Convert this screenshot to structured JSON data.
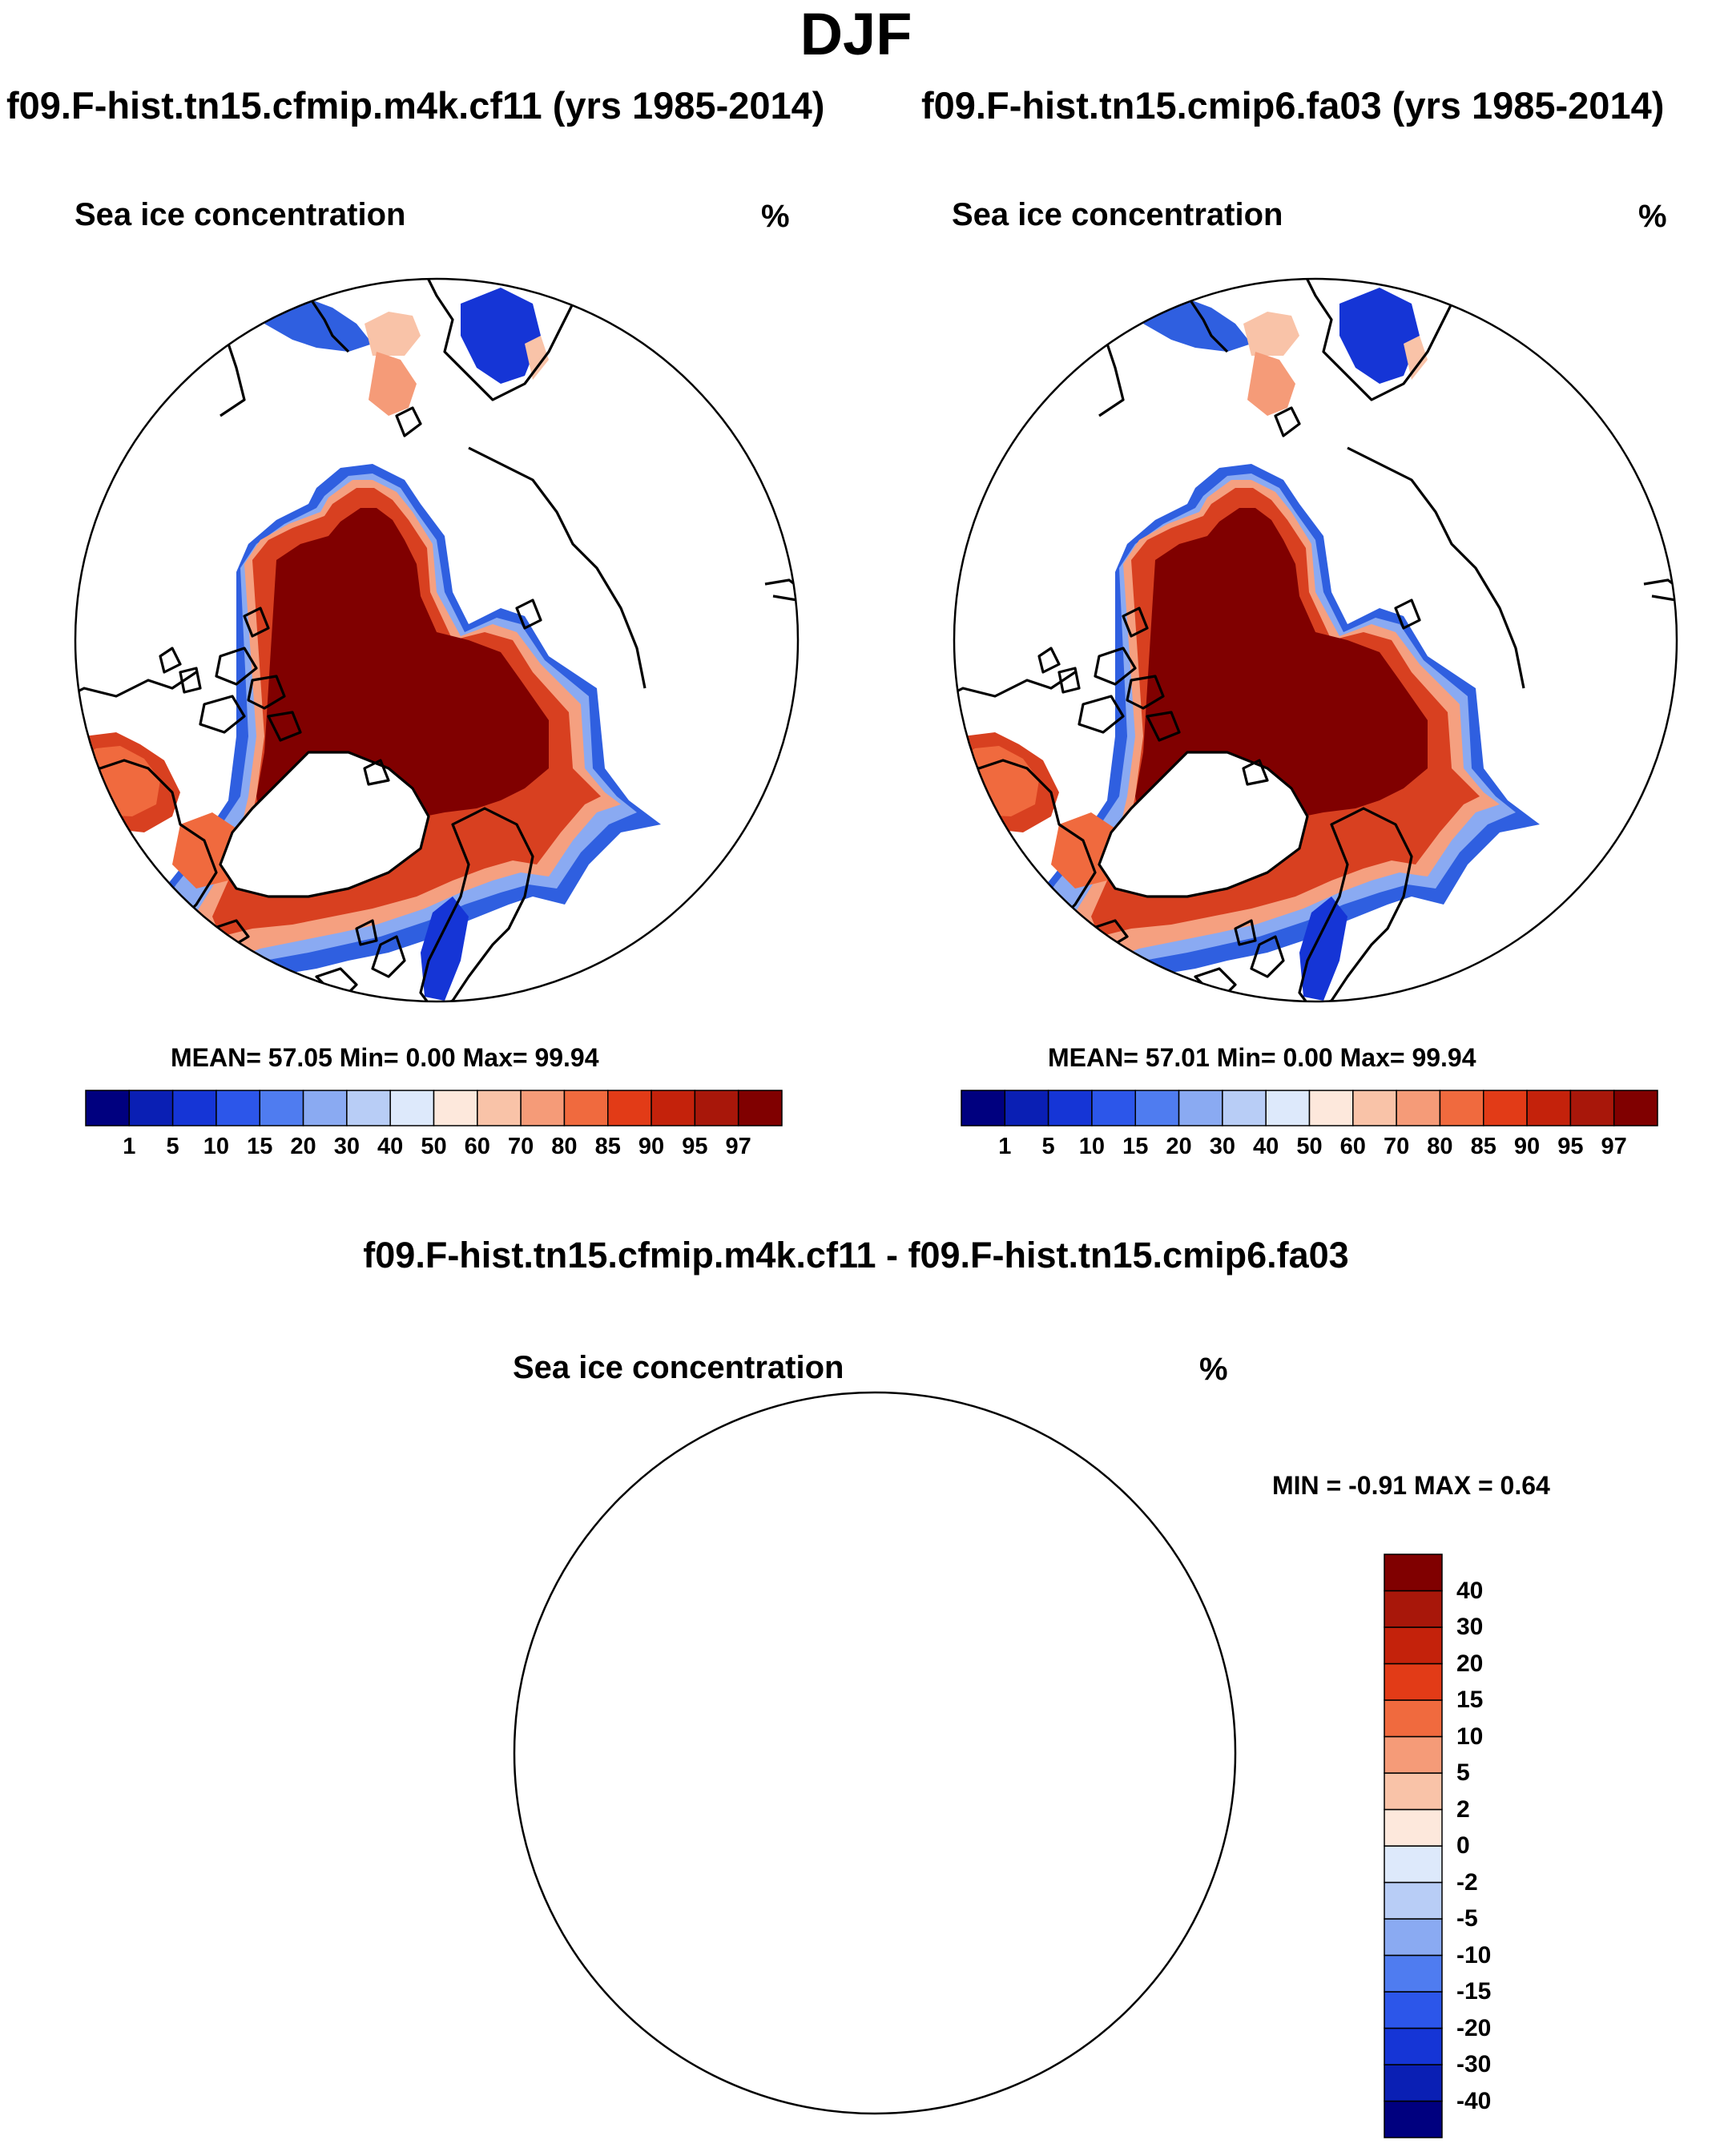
{
  "season_title": "DJF",
  "panels": [
    {
      "case_title": "f09.F-hist.tn15.cfmip.m4k.cf11 (yrs 1985-2014)",
      "field_label": "Sea ice concentration",
      "units": "%",
      "stats": "MEAN=  57.05  Min=    0.00  Max=  99.94"
    },
    {
      "case_title": "f09.F-hist.tn15.cmip6.fa03 (yrs 1985-2014)",
      "field_label": "Sea ice concentration",
      "units": "%",
      "stats": "MEAN=  57.01  Min=    0.00  Max=  99.94"
    }
  ],
  "diff_panel": {
    "title": "f09.F-hist.tn15.cfmip.m4k.cf11 - f09.F-hist.tn15.cmip6.fa03",
    "field_label": "Sea ice concentration",
    "units": "%",
    "stats": "MIN =  -0.91 MAX =   0.64"
  },
  "colorbars": {
    "abs_levels": [
      "1",
      "5",
      "10",
      "15",
      "20",
      "30",
      "40",
      "50",
      "60",
      "70",
      "80",
      "85",
      "90",
      "95",
      "97"
    ],
    "abs_colors": [
      "#00007f",
      "#0a1fb4",
      "#1535d6",
      "#2c56ea",
      "#4f7cf0",
      "#8aaaf2",
      "#b8cdf6",
      "#dde9fb",
      "#fde8dc",
      "#f9c3a8",
      "#f59b78",
      "#f06a3e",
      "#e23b17",
      "#c4220b",
      "#a8170a",
      "#800000"
    ],
    "diff_levels": [
      "-40",
      "-30",
      "-20",
      "-15",
      "-10",
      "-5",
      "-2",
      "0",
      "2",
      "5",
      "10",
      "15",
      "20",
      "30",
      "40"
    ],
    "diff_colors": [
      "#00007f",
      "#0a1fb4",
      "#1535d6",
      "#2c56ea",
      "#4f7cf0",
      "#8aaaf2",
      "#b8cdf6",
      "#dde9fb",
      "#fde8dc",
      "#f9c3a8",
      "#f59b78",
      "#f06a3e",
      "#e23b17",
      "#c4220b",
      "#a8170a",
      "#800000"
    ]
  },
  "colors": {
    "ice_core": "#800000",
    "ice_mid": "#d84020",
    "ice_edge": "#f5a080",
    "ice_blue": "#2f5fe0",
    "diff_pos": "#fde8dc",
    "diff_neg": "#dde9fb",
    "land_line": "#000000"
  }
}
